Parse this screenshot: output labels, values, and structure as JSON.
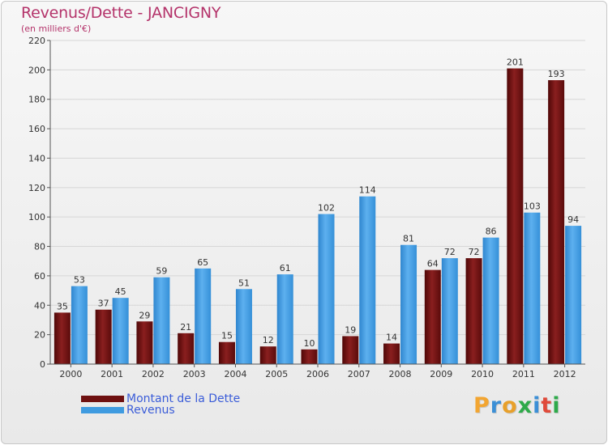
{
  "header": {
    "title": "Revenus/Dette - JANCIGNY",
    "subtitle": "(en milliers d'€)"
  },
  "legend": {
    "items": [
      {
        "label": "Montant de la Dette",
        "color": "#6e1010"
      },
      {
        "label": "Revenus",
        "color": "#3f9be0"
      }
    ]
  },
  "logo": {
    "text": "Proxiti",
    "letters": [
      {
        "ch": "P",
        "color": "#f2a531"
      },
      {
        "ch": "r",
        "color": "#3b8fd6"
      },
      {
        "ch": "o",
        "color": "#e8a02a"
      },
      {
        "ch": "x",
        "color": "#2eaa4a"
      },
      {
        "ch": "i",
        "color": "#3b8fd6"
      },
      {
        "ch": "t",
        "color": "#e04a3a"
      },
      {
        "ch": "i",
        "color": "#2eaa4a"
      }
    ]
  },
  "chart_data": {
    "type": "bar",
    "title": "Revenus/Dette - JANCIGNY",
    "subtitle": "(en milliers d'€)",
    "categories": [
      "2000",
      "2001",
      "2002",
      "2003",
      "2004",
      "2005",
      "2006",
      "2007",
      "2008",
      "2009",
      "2010",
      "2011",
      "2012"
    ],
    "series": [
      {
        "name": "Montant de la Dette",
        "color": "#6e1010",
        "values": [
          35,
          37,
          29,
          21,
          15,
          12,
          10,
          19,
          14,
          64,
          72,
          201,
          193
        ]
      },
      {
        "name": "Revenus",
        "color": "#3f9be0",
        "values": [
          53,
          45,
          59,
          65,
          51,
          61,
          102,
          114,
          81,
          72,
          86,
          103,
          94
        ]
      }
    ],
    "ylim": [
      0,
      220
    ],
    "yticks": [
      0,
      20,
      40,
      60,
      80,
      100,
      120,
      140,
      160,
      180,
      200,
      220
    ],
    "grid": true,
    "legend_position": "bottom-left"
  }
}
